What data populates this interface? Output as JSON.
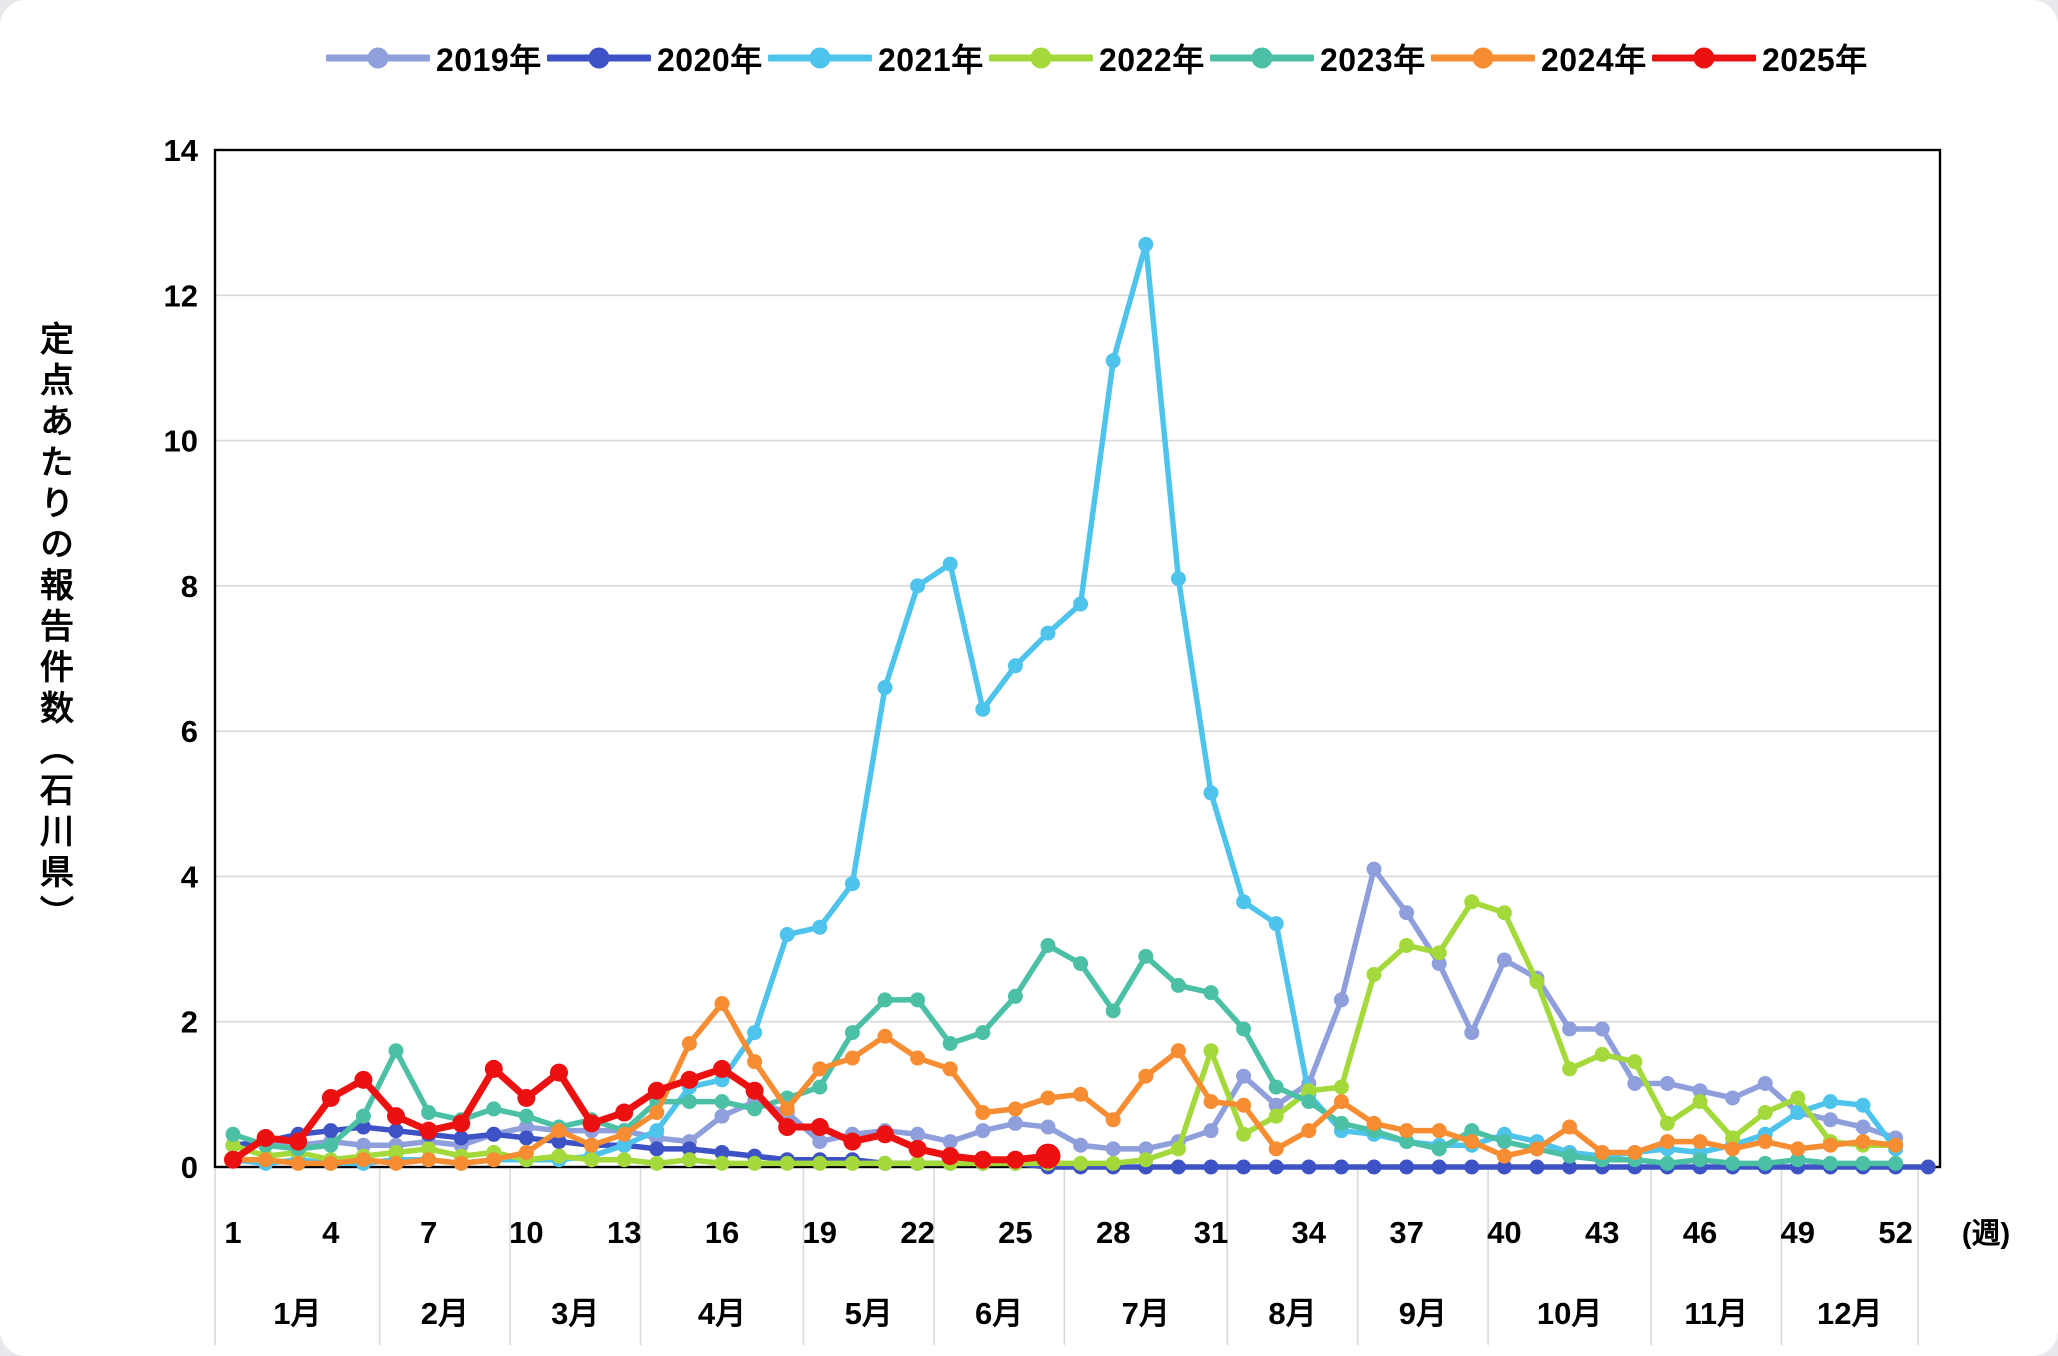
{
  "y_axis": {
    "title": "定点あたりの報告件数（石川県）",
    "tick_labels": [
      "0",
      "2",
      "4",
      "6",
      "8",
      "10",
      "12",
      "14"
    ],
    "min": 0,
    "max": 14,
    "tick_step": 2
  },
  "x_axis": {
    "unit_label": "(週)",
    "week_ticks": [
      1,
      4,
      7,
      10,
      13,
      16,
      19,
      22,
      25,
      28,
      31,
      34,
      37,
      40,
      43,
      46,
      49,
      52
    ],
    "months": [
      {
        "label": "1月",
        "start_week": 1,
        "end_week": 5
      },
      {
        "label": "2月",
        "start_week": 6,
        "end_week": 9
      },
      {
        "label": "3月",
        "start_week": 10,
        "end_week": 13
      },
      {
        "label": "4月",
        "start_week": 14,
        "end_week": 18
      },
      {
        "label": "5月",
        "start_week": 19,
        "end_week": 22
      },
      {
        "label": "6月",
        "start_week": 23,
        "end_week": 26
      },
      {
        "label": "7月",
        "start_week": 27,
        "end_week": 31
      },
      {
        "label": "8月",
        "start_week": 32,
        "end_week": 35
      },
      {
        "label": "9月",
        "start_week": 36,
        "end_week": 39
      },
      {
        "label": "10月",
        "start_week": 40,
        "end_week": 44
      },
      {
        "label": "11月",
        "start_week": 45,
        "end_week": 48
      },
      {
        "label": "12月",
        "start_week": 49,
        "end_week": 52
      }
    ]
  },
  "colors": {
    "grid": "#D9D9D9",
    "axis": "#000000",
    "text": "#000000",
    "background": "#FFFFFF"
  },
  "chart_data": {
    "type": "line",
    "x_unit": "week",
    "xlim": [
      1,
      53
    ],
    "ylim": [
      0,
      14
    ],
    "grid": true,
    "legend_position": "top",
    "series": [
      {
        "name": "2019年",
        "color": "#8F9FDC",
        "start_week": 1,
        "values": [
          0.3,
          0.35,
          0.3,
          0.35,
          0.3,
          0.3,
          0.35,
          0.3,
          0.45,
          0.55,
          0.5,
          0.5,
          0.5,
          0.4,
          0.35,
          0.7,
          0.9,
          0.75,
          0.35,
          0.45,
          0.5,
          0.45,
          0.35,
          0.5,
          0.6,
          0.55,
          0.3,
          0.25,
          0.25,
          0.35,
          0.5,
          1.25,
          0.85,
          1.15,
          2.3,
          4.1,
          3.5,
          2.8,
          1.85,
          2.85,
          2.6,
          1.9,
          1.9,
          1.15,
          1.15,
          1.05,
          0.95,
          1.15,
          0.75,
          0.65,
          0.55,
          0.4
        ]
      },
      {
        "name": "2020年",
        "color": "#3D53C5",
        "start_week": 1,
        "values": [
          0.3,
          0.35,
          0.45,
          0.5,
          0.55,
          0.5,
          0.45,
          0.4,
          0.45,
          0.4,
          0.35,
          0.3,
          0.3,
          0.25,
          0.25,
          0.2,
          0.15,
          0.1,
          0.1,
          0.1,
          0.05,
          0.05,
          0.05,
          0.05,
          0.05,
          0,
          0,
          0,
          0,
          0,
          0,
          0,
          0,
          0,
          0,
          0,
          0,
          0,
          0,
          0,
          0,
          0,
          0,
          0,
          0,
          0,
          0,
          0,
          0,
          0,
          0,
          0,
          0
        ]
      },
      {
        "name": "2021年",
        "color": "#4EC3EC",
        "start_week": 1,
        "values": [
          0.1,
          0.05,
          0.1,
          0.05,
          0.05,
          0.1,
          0.1,
          0.05,
          0.1,
          0.1,
          0.1,
          0.15,
          0.3,
          0.5,
          1.1,
          1.2,
          1.85,
          3.2,
          3.3,
          3.9,
          6.6,
          8.0,
          8.3,
          6.3,
          6.9,
          7.35,
          7.75,
          11.1,
          12.7,
          8.1,
          5.15,
          3.65,
          3.35,
          1.0,
          0.5,
          0.45,
          0.35,
          0.3,
          0.3,
          0.45,
          0.35,
          0.2,
          0.15,
          0.2,
          0.25,
          0.2,
          0.3,
          0.45,
          0.75,
          0.9,
          0.85,
          0.25
        ]
      },
      {
        "name": "2022年",
        "color": "#A3D93A",
        "start_week": 1,
        "values": [
          0.3,
          0.15,
          0.2,
          0.1,
          0.15,
          0.2,
          0.25,
          0.15,
          0.2,
          0.1,
          0.15,
          0.1,
          0.1,
          0.05,
          0.1,
          0.05,
          0.05,
          0.05,
          0.05,
          0.05,
          0.05,
          0.05,
          0.05,
          0.05,
          0.05,
          0.05,
          0.05,
          0.05,
          0.1,
          0.25,
          1.6,
          0.45,
          0.7,
          1.05,
          1.1,
          2.65,
          3.05,
          2.95,
          3.65,
          3.5,
          2.55,
          1.35,
          1.55,
          1.45,
          0.6,
          0.9,
          0.4,
          0.75,
          0.95,
          0.35,
          0.3,
          0.3
        ]
      },
      {
        "name": "2023年",
        "color": "#4CC0A5",
        "start_week": 1,
        "values": [
          0.45,
          0.3,
          0.25,
          0.3,
          0.7,
          1.6,
          0.75,
          0.65,
          0.8,
          0.7,
          0.55,
          0.65,
          0.5,
          0.9,
          0.9,
          0.9,
          0.8,
          0.95,
          1.1,
          1.85,
          2.3,
          2.3,
          1.7,
          1.85,
          2.35,
          3.05,
          2.8,
          2.15,
          2.9,
          2.5,
          2.4,
          1.9,
          1.1,
          0.9,
          0.6,
          0.5,
          0.35,
          0.25,
          0.5,
          0.35,
          0.25,
          0.15,
          0.1,
          0.1,
          0.05,
          0.1,
          0.05,
          0.05,
          0.1,
          0.05,
          0.05,
          0.05
        ]
      },
      {
        "name": "2024年",
        "color": "#F68D33",
        "start_week": 1,
        "values": [
          0.1,
          0.1,
          0.05,
          0.05,
          0.1,
          0.05,
          0.1,
          0.05,
          0.1,
          0.2,
          0.5,
          0.3,
          0.45,
          0.75,
          1.7,
          2.25,
          1.45,
          0.8,
          1.35,
          1.5,
          1.8,
          1.5,
          1.35,
          0.75,
          0.8,
          0.95,
          1.0,
          0.65,
          1.25,
          1.6,
          0.9,
          0.85,
          0.25,
          0.5,
          0.9,
          0.6,
          0.5,
          0.5,
          0.35,
          0.15,
          0.25,
          0.55,
          0.2,
          0.2,
          0.35,
          0.35,
          0.25,
          0.35,
          0.25,
          0.3,
          0.35,
          0.3
        ]
      },
      {
        "name": "2025年",
        "color": "#EC1111",
        "start_week": 1,
        "emphasize_last_point": true,
        "values": [
          0.1,
          0.4,
          0.35,
          0.95,
          1.2,
          0.7,
          0.5,
          0.6,
          1.35,
          0.95,
          1.3,
          0.6,
          0.75,
          1.05,
          1.2,
          1.35,
          1.05,
          0.55,
          0.55,
          0.35,
          0.45,
          0.25,
          0.15,
          0.1,
          0.1,
          0.15
        ]
      }
    ]
  }
}
